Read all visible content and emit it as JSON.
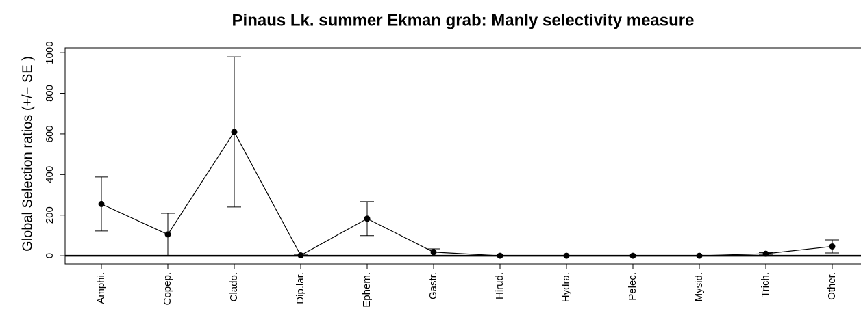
{
  "chart_data": {
    "type": "line",
    "title": "Pinaus Lk. summer Ekman grab: Manly selectivity measure",
    "y_label": "Global Selection ratios (+/− SE )",
    "categories": [
      "Amphi.",
      "Copep.",
      "Clado.",
      "Dip.lar.",
      "Ephem.",
      "Gastr.",
      "Hirud.",
      "Hydra.",
      "Pelec.",
      "Mysid.",
      "Trich.",
      "Other."
    ],
    "series": [
      {
        "color": "#000000",
        "values": [
          255,
          105,
          610,
          2,
          183,
          18,
          0,
          0,
          0,
          0,
          10,
          46
        ],
        "error": [
          133,
          104,
          370,
          2,
          84,
          16,
          0,
          0,
          0,
          0,
          6,
          32
        ]
      }
    ],
    "ylim": [
      -40,
      1024
    ],
    "yticks": [
      0,
      200,
      400,
      600,
      800,
      1000
    ],
    "reference_line": 0
  }
}
